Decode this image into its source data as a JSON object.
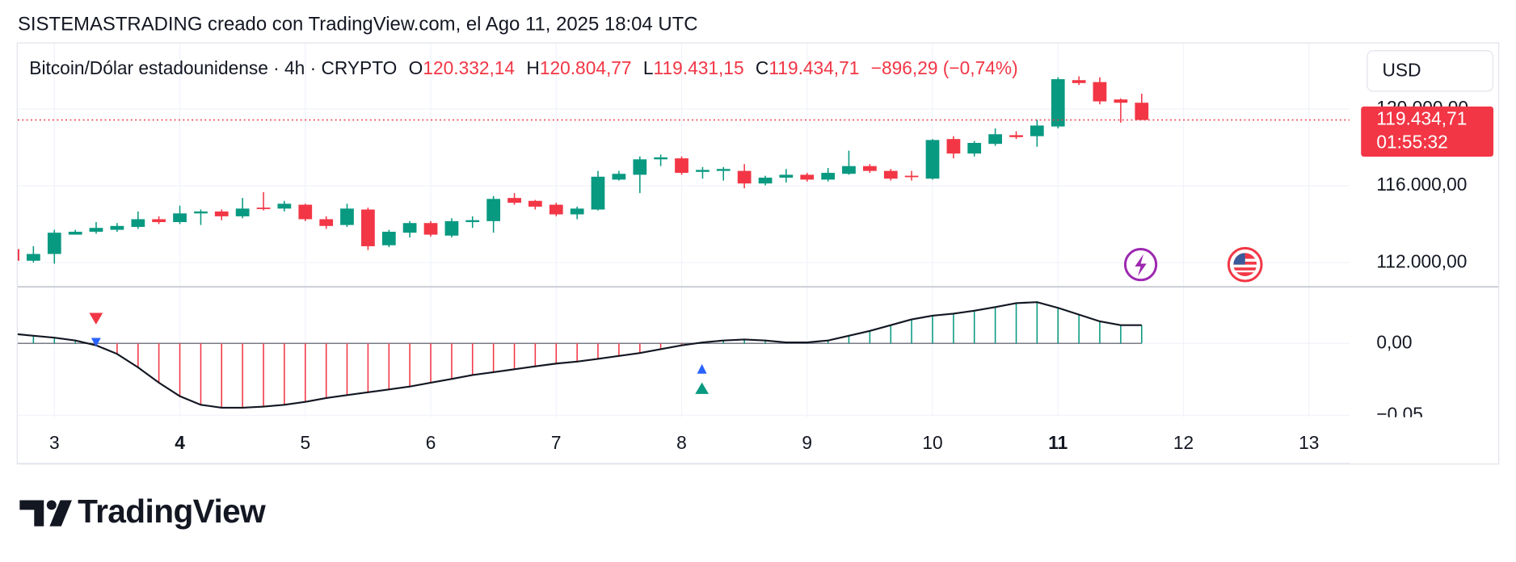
{
  "header": {
    "attribution": "SISTEMASTRADING creado con TradingView.com, el Ago 11, 2025 18:04 UTC",
    "symbol": "Bitcoin/Dólar estadounidense · 4h · CRYPTO",
    "ohlc": [
      {
        "label": "O",
        "value": "120.332,14"
      },
      {
        "label": "H",
        "value": "120.804,77"
      },
      {
        "label": "L",
        "value": "119.431,15"
      },
      {
        "label": "C",
        "value": "119.434,71"
      }
    ],
    "change": "−896,29 (−0,74%)",
    "currency": "USD"
  },
  "chart_data": [
    {
      "type": "candlestick",
      "x": [
        2.667,
        2.833,
        3,
        3.167,
        3.333,
        3.5,
        3.667,
        3.833,
        4,
        4.167,
        4.333,
        4.5,
        4.667,
        4.833,
        5,
        5.167,
        5.333,
        5.5,
        5.667,
        5.833,
        6,
        6.167,
        6.333,
        6.5,
        6.667,
        6.833,
        7,
        7.167,
        7.333,
        7.5,
        7.667,
        7.833,
        8,
        8.167,
        8.333,
        8.5,
        8.667,
        8.833,
        9,
        9.167,
        9.333,
        9.5,
        9.667,
        9.833,
        10,
        10.167,
        10.333,
        10.5,
        10.667,
        10.833,
        11,
        11.167,
        11.333,
        11.5,
        11.667
      ],
      "open": [
        112707,
        112103,
        112455,
        113461,
        113612,
        113713,
        113863,
        114266,
        114115,
        114568,
        114668,
        114417,
        114869,
        114819,
        115020,
        114266,
        113964,
        114769,
        112908,
        113562,
        114065,
        113411,
        114115,
        114165,
        115372,
        115221,
        115020,
        114517,
        114769,
        116328,
        116580,
        117384,
        117435,
        116731,
        116781,
        116781,
        116127,
        116429,
        116580,
        116328,
        116630,
        117032,
        116781,
        116530,
        116378,
        118441,
        117686,
        118189,
        118642,
        118591,
        119095,
        121509,
        121408,
        120503,
        120332.14
      ],
      "high": [
        112858,
        112858,
        113713,
        113713,
        114115,
        114065,
        114668,
        114417,
        114970,
        114769,
        114769,
        115372,
        115674,
        115221,
        115071,
        114417,
        115071,
        114869,
        113713,
        114165,
        114165,
        114316,
        114417,
        115473,
        115624,
        115272,
        115121,
        114920,
        116781,
        116781,
        117535,
        117636,
        117535,
        116982,
        116982,
        117133,
        116529,
        116882,
        116680,
        116932,
        117837,
        117133,
        116882,
        116781,
        118441,
        118592,
        118340,
        118994,
        118843,
        119447,
        121660,
        121710,
        121660,
        120553,
        120804.77
      ],
      "low": [
        111952,
        112003,
        111952,
        113511,
        113511,
        113612,
        113763,
        114014,
        114014,
        113964,
        114215,
        114316,
        114719,
        114668,
        114165,
        113763,
        113863,
        112656,
        112807,
        113310,
        113360,
        113310,
        113813,
        113562,
        115020,
        114769,
        114417,
        114266,
        114719,
        116278,
        115624,
        117032,
        116580,
        116378,
        116278,
        115875,
        116026,
        116177,
        116227,
        116227,
        116580,
        116680,
        116278,
        116278,
        116328,
        117435,
        117535,
        118089,
        118440,
        118038,
        118994,
        121257,
        120251,
        119296,
        119431.15
      ],
      "close": [
        112103,
        112455,
        113562,
        113612,
        113813,
        113914,
        114266,
        114115,
        114568,
        114668,
        114417,
        114819,
        114819,
        115071,
        114266,
        113914,
        114819,
        112858,
        113612,
        114065,
        113461,
        114165,
        114215,
        115322,
        115121,
        114920,
        114517,
        114819,
        116479,
        116630,
        117384,
        117485,
        116680,
        116832,
        116882,
        116127,
        116429,
        116580,
        116328,
        116680,
        117032,
        116781,
        116378,
        116480,
        118390,
        117686,
        118240,
        118692,
        118541,
        119145,
        121559,
        121358,
        120402,
        120332,
        119434.71
      ],
      "up_color": "#089981",
      "down_color": "#f23645",
      "xlim": [
        2.708,
        13.323
      ],
      "xticks": [
        3,
        4,
        5,
        6,
        7,
        8,
        9,
        10,
        11,
        12,
        13
      ],
      "bold_xticks": [
        4,
        11
      ],
      "ylim": [
        110795,
        123420
      ],
      "yticks": [
        {
          "value": 112000,
          "label": "112.000,00"
        },
        {
          "value": 116000,
          "label": "116.000,00"
        },
        {
          "value": 120000,
          "label": "120.000,00"
        }
      ],
      "last_price": {
        "value": 119434.71,
        "label": "119.434,71"
      },
      "countdown": "01:55:32",
      "grid": true
    },
    {
      "type": "line",
      "x": [
        2.667,
        2.833,
        3,
        3.167,
        3.333,
        3.5,
        3.667,
        3.833,
        4,
        4.167,
        4.333,
        4.5,
        4.667,
        4.833,
        5,
        5.167,
        5.333,
        5.5,
        5.667,
        5.833,
        6,
        6.167,
        6.333,
        6.5,
        6.667,
        6.833,
        7,
        7.167,
        7.333,
        7.5,
        7.667,
        7.833,
        8,
        8.167,
        8.333,
        8.5,
        8.667,
        8.833,
        9,
        9.167,
        9.333,
        9.5,
        9.667,
        9.833,
        10,
        10.167,
        10.333,
        10.5,
        10.667,
        10.833,
        11,
        11.167,
        11.333,
        11.5,
        11.667
      ],
      "values": [
        0.0067,
        0.0053,
        0.004,
        0.002,
        -0.0013,
        -0.0073,
        -0.0167,
        -0.0273,
        -0.0367,
        -0.0427,
        -0.0447,
        -0.0447,
        -0.044,
        -0.0427,
        -0.0407,
        -0.038,
        -0.036,
        -0.034,
        -0.032,
        -0.03,
        -0.0273,
        -0.0247,
        -0.022,
        -0.02,
        -0.018,
        -0.016,
        -0.014,
        -0.0127,
        -0.0107,
        -0.0087,
        -0.0067,
        -0.004,
        -0.0013,
        0.0007,
        0.002,
        0.0027,
        0.002,
        0.0007,
        0.0007,
        0.002,
        0.0053,
        0.0087,
        0.0127,
        0.0167,
        0.0193,
        0.0207,
        0.0227,
        0.0253,
        0.028,
        0.0287,
        0.0247,
        0.02,
        0.0153,
        0.0127,
        0.0127
      ],
      "color": "#131722",
      "bars": true,
      "positive_color": "#089981",
      "negative_color": "#f23645",
      "xlim": [
        2.708,
        13.323
      ],
      "ylim": [
        -0.0513,
        0.0387
      ],
      "yticks": [
        {
          "value": -0.05,
          "label": "−0,05"
        },
        {
          "value": 0,
          "label": "0,00"
        }
      ],
      "grid": true
    }
  ],
  "footer": {
    "brand": "TradingView"
  }
}
